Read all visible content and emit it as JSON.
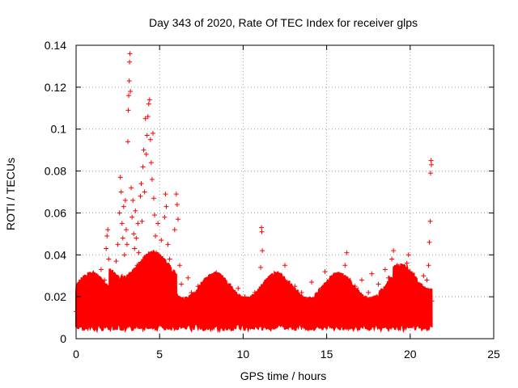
{
  "chart_data": {
    "type": "scatter",
    "title": "Day 343 of 2020, Rate Of TEC Index for receiver glps",
    "xlabel": "GPS time / hours",
    "ylabel": "ROTI / TECUs",
    "xlim": [
      0,
      25
    ],
    "ylim": [
      0,
      0.14
    ],
    "x_ticks": [
      0,
      5,
      10,
      15,
      20,
      25
    ],
    "x_tick_labels": [
      "0",
      "5",
      "10",
      "15",
      "20",
      "25"
    ],
    "y_ticks": [
      0,
      0.02,
      0.04,
      0.06,
      0.08,
      0.1,
      0.12,
      0.14
    ],
    "y_tick_labels": [
      "0",
      "0.02",
      "0.04",
      "0.06",
      "0.08",
      "0.1",
      "0.12",
      "0.14"
    ],
    "grid": true,
    "marker": "plus",
    "color": "#ff0000",
    "series": [
      {
        "points": [
          [
            0.0,
            0.013
          ],
          [
            0.1,
            0.018
          ],
          [
            0.15,
            0.024
          ],
          [
            0.2,
            0.01
          ],
          [
            0.3,
            0.028
          ],
          [
            0.4,
            0.015
          ],
          [
            0.5,
            0.021
          ],
          [
            0.6,
            0.012
          ],
          [
            0.7,
            0.027
          ],
          [
            0.8,
            0.009
          ],
          [
            0.9,
            0.019
          ],
          [
            1.0,
            0.025
          ],
          [
            1.1,
            0.014
          ],
          [
            1.2,
            0.03
          ],
          [
            1.3,
            0.011
          ],
          [
            1.4,
            0.022
          ],
          [
            1.5,
            0.033
          ],
          [
            1.6,
            0.017
          ],
          [
            1.7,
            0.028
          ],
          [
            1.8,
            0.043
          ],
          [
            1.85,
            0.049
          ],
          [
            1.9,
            0.052
          ],
          [
            1.95,
            0.038
          ],
          [
            2.0,
            0.02
          ],
          [
            2.1,
            0.031
          ],
          [
            2.2,
            0.015
          ],
          [
            2.3,
            0.026
          ],
          [
            2.4,
            0.037
          ],
          [
            2.5,
            0.045
          ],
          [
            2.6,
            0.06
          ],
          [
            2.65,
            0.077
          ],
          [
            2.7,
            0.07
          ],
          [
            2.75,
            0.055
          ],
          [
            2.8,
            0.048
          ],
          [
            2.85,
            0.063
          ],
          [
            2.9,
            0.04
          ],
          [
            2.95,
            0.066
          ],
          [
            3.0,
            0.052
          ],
          [
            3.05,
            0.045
          ],
          [
            3.1,
            0.094
          ],
          [
            3.12,
            0.109
          ],
          [
            3.15,
            0.116
          ],
          [
            3.18,
            0.123
          ],
          [
            3.2,
            0.132
          ],
          [
            3.22,
            0.136
          ],
          [
            3.25,
            0.118
          ],
          [
            3.3,
            0.072
          ],
          [
            3.35,
            0.058
          ],
          [
            3.4,
            0.066
          ],
          [
            3.45,
            0.05
          ],
          [
            3.5,
            0.043
          ],
          [
            3.55,
            0.061
          ],
          [
            3.6,
            0.048
          ],
          [
            3.65,
            0.035
          ],
          [
            3.7,
            0.055
          ],
          [
            3.75,
            0.041
          ],
          [
            3.8,
            0.029
          ],
          [
            3.85,
            0.068
          ],
          [
            3.9,
            0.074
          ],
          [
            3.95,
            0.056
          ],
          [
            4.0,
            0.082
          ],
          [
            4.05,
            0.09
          ],
          [
            4.1,
            0.07
          ],
          [
            4.15,
            0.105
          ],
          [
            4.2,
            0.088
          ],
          [
            4.25,
            0.097
          ],
          [
            4.3,
            0.106
          ],
          [
            4.35,
            0.112
          ],
          [
            4.4,
            0.114
          ],
          [
            4.45,
            0.095
          ],
          [
            4.5,
            0.084
          ],
          [
            4.55,
            0.076
          ],
          [
            4.6,
            0.098
          ],
          [
            4.65,
            0.067
          ],
          [
            4.7,
            0.059
          ],
          [
            4.75,
            0.049
          ],
          [
            4.8,
            0.041
          ],
          [
            4.85,
            0.03
          ],
          [
            4.9,
            0.055
          ],
          [
            5.0,
            0.022
          ],
          [
            5.1,
            0.047
          ],
          [
            5.2,
            0.034
          ],
          [
            5.3,
            0.058
          ],
          [
            5.35,
            0.069
          ],
          [
            5.4,
            0.063
          ],
          [
            5.5,
            0.045
          ],
          [
            5.6,
            0.038
          ],
          [
            5.7,
            0.031
          ],
          [
            5.8,
            0.024
          ],
          [
            5.9,
            0.052
          ],
          [
            6.0,
            0.069
          ],
          [
            6.05,
            0.064
          ],
          [
            6.1,
            0.057
          ],
          [
            6.2,
            0.035
          ],
          [
            6.3,
            0.026
          ],
          [
            6.5,
            0.018
          ],
          [
            6.7,
            0.029
          ],
          [
            6.9,
            0.022
          ],
          [
            7.1,
            0.015
          ],
          [
            7.3,
            0.025
          ],
          [
            7.5,
            0.012
          ],
          [
            7.7,
            0.02
          ],
          [
            7.9,
            0.016
          ],
          [
            8.1,
            0.023
          ],
          [
            8.3,
            0.01
          ],
          [
            8.5,
            0.019
          ],
          [
            8.7,
            0.026
          ],
          [
            8.9,
            0.014
          ],
          [
            9.1,
            0.021
          ],
          [
            9.3,
            0.011
          ],
          [
            9.5,
            0.017
          ],
          [
            9.7,
            0.024
          ],
          [
            9.9,
            0.013
          ],
          [
            10.1,
            0.02
          ],
          [
            10.3,
            0.009
          ],
          [
            10.5,
            0.016
          ],
          [
            10.7,
            0.022
          ],
          [
            10.9,
            0.018
          ],
          [
            11.05,
            0.034
          ],
          [
            11.1,
            0.053
          ],
          [
            11.12,
            0.051
          ],
          [
            11.15,
            0.042
          ],
          [
            11.3,
            0.026
          ],
          [
            11.5,
            0.019
          ],
          [
            11.7,
            0.013
          ],
          [
            11.9,
            0.024
          ],
          [
            12.1,
            0.015
          ],
          [
            12.3,
            0.021
          ],
          [
            12.5,
            0.035
          ],
          [
            12.7,
            0.012
          ],
          [
            12.9,
            0.019
          ],
          [
            13.1,
            0.025
          ],
          [
            13.3,
            0.016
          ],
          [
            13.5,
            0.022
          ],
          [
            13.7,
            0.011
          ],
          [
            13.9,
            0.018
          ],
          [
            14.1,
            0.027
          ],
          [
            14.3,
            0.014
          ],
          [
            14.5,
            0.02
          ],
          [
            14.7,
            0.024
          ],
          [
            14.9,
            0.032
          ],
          [
            15.1,
            0.017
          ],
          [
            15.3,
            0.023
          ],
          [
            15.5,
            0.013
          ],
          [
            15.7,
            0.02
          ],
          [
            15.9,
            0.027
          ],
          [
            16.1,
            0.035
          ],
          [
            16.2,
            0.041
          ],
          [
            16.3,
            0.022
          ],
          [
            16.5,
            0.016
          ],
          [
            16.7,
            0.025
          ],
          [
            16.9,
            0.019
          ],
          [
            17.1,
            0.028
          ],
          [
            17.3,
            0.014
          ],
          [
            17.5,
            0.022
          ],
          [
            17.7,
            0.031
          ],
          [
            17.9,
            0.017
          ],
          [
            18.1,
            0.026
          ],
          [
            18.3,
            0.02
          ],
          [
            18.5,
            0.033
          ],
          [
            18.7,
            0.029
          ],
          [
            18.9,
            0.038
          ],
          [
            19.0,
            0.042
          ],
          [
            19.1,
            0.024
          ],
          [
            19.3,
            0.016
          ],
          [
            19.5,
            0.027
          ],
          [
            19.7,
            0.021
          ],
          [
            19.8,
            0.036
          ],
          [
            19.9,
            0.04
          ],
          [
            20.0,
            0.032
          ],
          [
            20.2,
            0.015
          ],
          [
            20.4,
            0.025
          ],
          [
            20.6,
            0.019
          ],
          [
            20.8,
            0.03
          ],
          [
            20.9,
            0.022
          ],
          [
            21.0,
            0.028
          ],
          [
            21.1,
            0.035
          ],
          [
            21.15,
            0.046
          ],
          [
            21.2,
            0.056
          ],
          [
            21.22,
            0.079
          ],
          [
            21.25,
            0.085
          ],
          [
            21.27,
            0.083
          ],
          [
            21.3,
            0.018
          ]
        ]
      }
    ]
  }
}
